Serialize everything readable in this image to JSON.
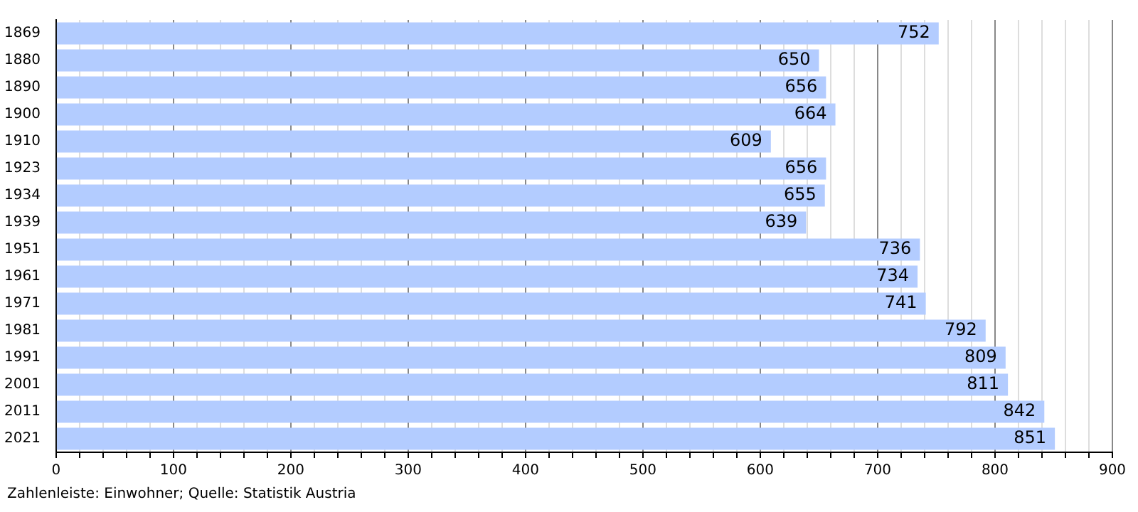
{
  "chart_data": {
    "type": "bar",
    "orientation": "horizontal",
    "categories": [
      "1869",
      "1880",
      "1890",
      "1900",
      "1910",
      "1923",
      "1934",
      "1939",
      "1951",
      "1961",
      "1971",
      "1981",
      "1991",
      "2001",
      "2011",
      "2021"
    ],
    "values": [
      752,
      650,
      656,
      664,
      609,
      656,
      655,
      639,
      736,
      734,
      741,
      792,
      809,
      811,
      842,
      851
    ],
    "color": "#b3ccff",
    "data_labels": true,
    "grid": "x",
    "legend": false,
    "xlim": [
      0,
      900
    ],
    "xticks": [
      0,
      {
        "value": 20,
        "label": null
      },
      {
        "value": 40,
        "label": null
      },
      {
        "value": 60,
        "label": null
      },
      {
        "value": 80,
        "label": null
      },
      100,
      {
        "value": 120,
        "label": null
      },
      {
        "value": 140,
        "label": null
      },
      {
        "value": 160,
        "label": null
      },
      {
        "value": 180,
        "label": null
      },
      200,
      {
        "value": 220,
        "label": null
      },
      {
        "value": 240,
        "label": null
      },
      {
        "value": 260,
        "label": null
      },
      {
        "value": 280,
        "label": null
      },
      300,
      {
        "value": 320,
        "label": null
      },
      {
        "value": 340,
        "label": null
      },
      {
        "value": 360,
        "label": null
      },
      {
        "value": 380,
        "label": null
      },
      400,
      {
        "value": 420,
        "label": null
      },
      {
        "value": 440,
        "label": null
      },
      {
        "value": 460,
        "label": null
      },
      {
        "value": 480,
        "label": null
      },
      500,
      {
        "value": 520,
        "label": null
      },
      {
        "value": 540,
        "label": null
      },
      {
        "value": 560,
        "label": null
      },
      {
        "value": 580,
        "label": null
      },
      600,
      {
        "value": 620,
        "label": null
      },
      {
        "value": 640,
        "label": null
      },
      {
        "value": 660,
        "label": null
      },
      {
        "value": 680,
        "label": null
      },
      700,
      {
        "value": 720,
        "label": null
      },
      {
        "value": 740,
        "label": null
      },
      {
        "value": 760,
        "label": null
      },
      {
        "value": 780,
        "label": null
      },
      800,
      {
        "value": 820,
        "label": null
      },
      {
        "value": 840,
        "label": null
      },
      {
        "value": 860,
        "label": null
      },
      {
        "value": 880,
        "label": null
      },
      900
    ],
    "annotations": [
      "Zahlenleiste: Einwohner; Quelle: Statistik Austria"
    ]
  }
}
